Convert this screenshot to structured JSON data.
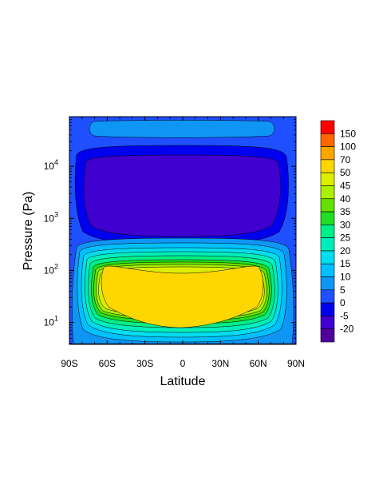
{
  "chart_data": {
    "type": "contour",
    "xlabel": "Latitude",
    "ylabel": "Pressure (Pa)",
    "x_ticks": [
      "90S",
      "60S",
      "30S",
      "0",
      "30N",
      "60N",
      "90N"
    ],
    "x_tick_values": [
      -90,
      -60,
      -30,
      0,
      30,
      60,
      90
    ],
    "xlim": [
      -90,
      90
    ],
    "y_scale": "log",
    "ylim_pa": [
      3.8,
      90000
    ],
    "y_ticks": [
      {
        "base": "10",
        "exp": "1",
        "value": 10
      },
      {
        "base": "10",
        "exp": "2",
        "value": 100
      },
      {
        "base": "10",
        "exp": "3",
        "value": 1000
      },
      {
        "base": "10",
        "exp": "4",
        "value": 10000
      }
    ],
    "colorbar": {
      "levels": [
        "150",
        "100",
        "70",
        "50",
        "45",
        "40",
        "35",
        "30",
        "25",
        "20",
        "15",
        "10",
        "5",
        "0",
        "-5",
        "-20"
      ],
      "colors": [
        "#ff0000",
        "#ff6600",
        "#ffa500",
        "#ffd700",
        "#ddee00",
        "#aaf000",
        "#66e000",
        "#22dd22",
        "#00ee88",
        "#00eebb",
        "#00ddee",
        "#00c0ff",
        "#0f96f5",
        "#1e50ff",
        "#0000ee",
        "#4000d0",
        "#50009a"
      ]
    },
    "regions": [
      {
        "name": "background",
        "value_range": "0 to 5",
        "color": "#1e50ff"
      },
      {
        "name": "upper-band",
        "lat": [
          -78,
          80
        ],
        "pressure_pa": [
          38000,
          80000
        ],
        "value_range": "5 to 10",
        "color": "#0f96f5"
      },
      {
        "name": "negative-cell",
        "lat": [
          -87,
          88
        ],
        "pressure_pa": [
          350,
          28000
        ],
        "value_range": "-5 to 0",
        "color": "#0000ee"
      },
      {
        "name": "strong-negative-cell",
        "lat": [
          -82,
          82
        ],
        "pressure_pa": [
          480,
          18000
        ],
        "value_range": "-20 to -5",
        "color": "#4000d0"
      },
      {
        "name": "positive-jet",
        "lat": [
          -90,
          88
        ],
        "pressure_pa": [
          4.5,
          250
        ],
        "value_range": "0 to 70",
        "peak_range": "50 to 70",
        "color": "#ffd700"
      }
    ]
  }
}
